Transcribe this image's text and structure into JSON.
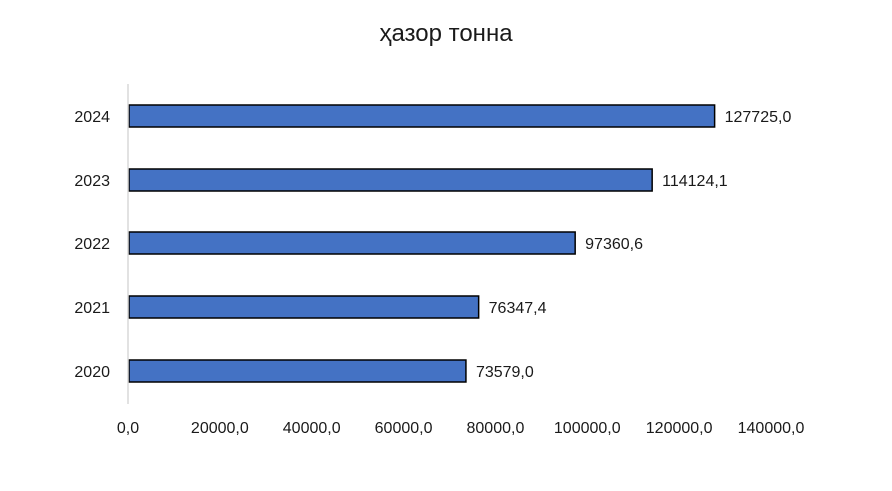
{
  "chart_data": {
    "type": "bar",
    "orientation": "horizontal",
    "title": "ҳазор тонна",
    "categories": [
      "2020",
      "2021",
      "2022",
      "2023",
      "2024"
    ],
    "values": [
      73579.0,
      76347.4,
      97360.6,
      114124.1,
      127725.0
    ],
    "data_labels": [
      "73579,0",
      "76347,4",
      "97360,6",
      "114124,1",
      "127725,0"
    ],
    "x_ticks": [
      0,
      20000,
      40000,
      60000,
      80000,
      100000,
      120000,
      140000
    ],
    "x_tick_labels": [
      "0,0",
      "20000,0",
      "40000,0",
      "60000,0",
      "80000,0",
      "100000,0",
      "120000,0",
      "140000,0"
    ],
    "xlim": [
      0,
      140000
    ],
    "grid": false,
    "legend": "none",
    "bar_color": "#4472C4",
    "bar_edge_color": "#000000"
  }
}
